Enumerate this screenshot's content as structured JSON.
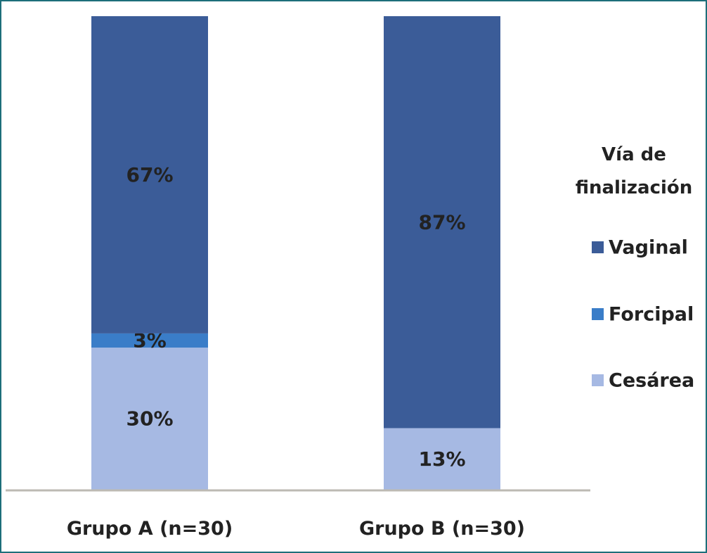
{
  "chart_data": {
    "type": "bar",
    "stacked": true,
    "categories": [
      "Grupo A (n=30)",
      "Grupo B (n=30)"
    ],
    "series": [
      {
        "name": "Cesárea",
        "color": "#a6b9e3",
        "values": [
          30,
          13
        ],
        "labels": [
          "30%",
          "13%"
        ]
      },
      {
        "name": "Forcipal",
        "color": "#3a7dc8",
        "values": [
          3,
          0
        ],
        "labels": [
          "3%",
          ""
        ]
      },
      {
        "name": "Vaginal",
        "color": "#3b5c98",
        "values": [
          67,
          87
        ],
        "labels": [
          "67%",
          "87%"
        ]
      }
    ],
    "ylim": [
      0,
      100
    ],
    "grid": false,
    "legend": {
      "title_lines": [
        "Vía de",
        "finalización"
      ],
      "placement": "right",
      "order": [
        "Vaginal",
        "Forcipal",
        "Cesárea"
      ]
    }
  },
  "colors": {
    "frame": "#1d6f7a",
    "baseline": "#bdbab3"
  }
}
